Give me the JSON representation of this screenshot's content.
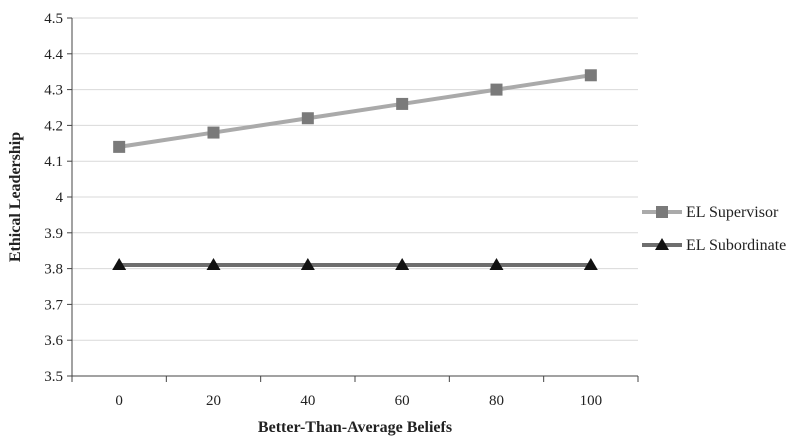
{
  "chart_data": {
    "type": "line",
    "title": "",
    "xlabel": "Better-Than-Average Beliefs",
    "ylabel": "Ethical Leadership",
    "categories": [
      "0",
      "20",
      "40",
      "60",
      "80",
      "100"
    ],
    "ylim": [
      3.5,
      4.5
    ],
    "yticks": [
      "3.5",
      "3.6",
      "3.7",
      "3.8",
      "3.9",
      "4",
      "4.1",
      "4.2",
      "4.3",
      "4.4",
      "4.5"
    ],
    "grid": "horizontal",
    "legend_position": "right",
    "series": [
      {
        "name": "EL Supervisor",
        "values": [
          4.14,
          4.18,
          4.22,
          4.26,
          4.3,
          4.34
        ],
        "line_color": "#aaaaaa",
        "marker": "square",
        "marker_color": "#7a7a7a"
      },
      {
        "name": "EL Subordinate",
        "values": [
          3.81,
          3.81,
          3.81,
          3.81,
          3.81,
          3.81
        ],
        "line_color": "#6e6e6e",
        "marker": "triangle",
        "marker_color": "#111111"
      }
    ]
  }
}
